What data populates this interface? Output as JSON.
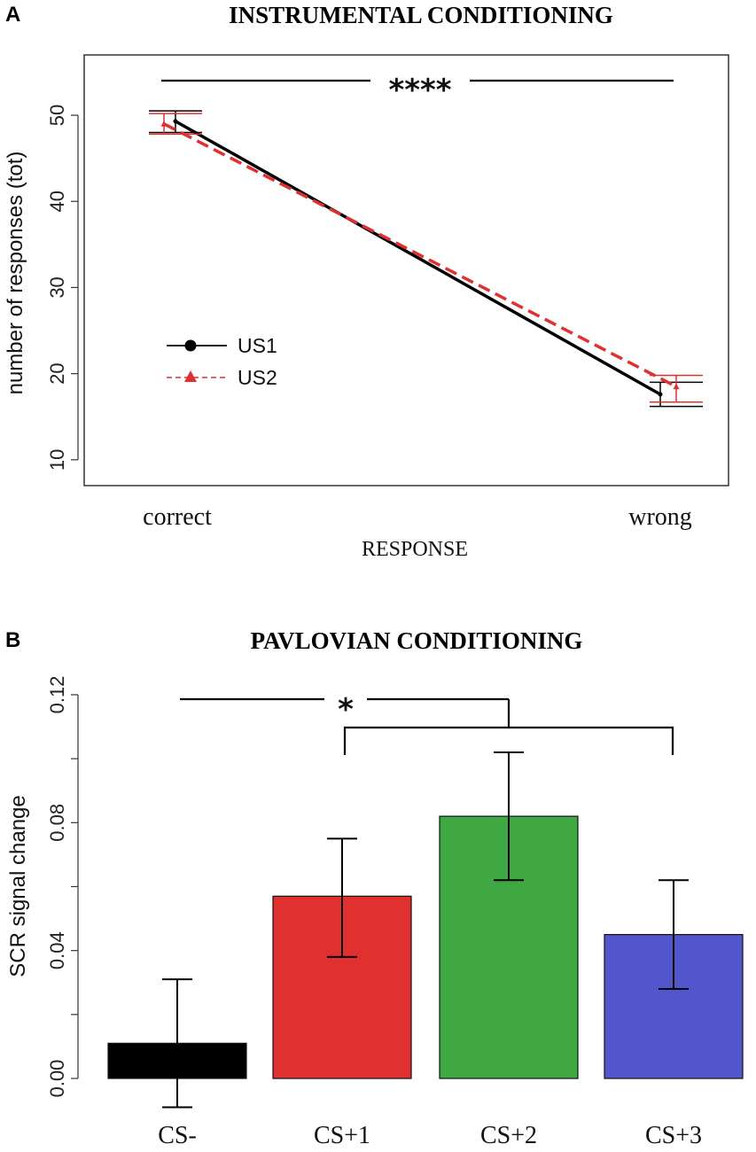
{
  "chart_data": [
    {
      "panel_label": "A",
      "type": "line",
      "title": "INSTRUMENTAL CONDITIONING",
      "xlabel": "RESPONSE",
      "ylabel": "number of responses (tot)",
      "categories": [
        "correct",
        "wrong"
      ],
      "ylim": [
        7,
        57
      ],
      "yticks": [
        10,
        20,
        30,
        40,
        50
      ],
      "series": [
        {
          "name": "US1",
          "color": "#000000",
          "marker": "circle",
          "line": "solid",
          "values": [
            49.3,
            17.6
          ],
          "err_low": [
            48.0,
            16.2
          ],
          "err_high": [
            50.5,
            19.0
          ]
        },
        {
          "name": "US2",
          "color": "#e03030",
          "marker": "triangle",
          "line": "dashed",
          "values": [
            49.0,
            18.5
          ],
          "err_low": [
            47.8,
            16.7
          ],
          "err_high": [
            50.2,
            19.8
          ]
        }
      ],
      "legend_position": "center-left",
      "significance": {
        "label": "****",
        "between": [
          "correct",
          "wrong"
        ]
      }
    },
    {
      "panel_label": "B",
      "type": "bar",
      "title": "PAVLOVIAN CONDITIONING",
      "xlabel": "",
      "ylabel": "SCR signal change",
      "categories": [
        "CS-",
        "CS+1",
        "CS+2",
        "CS+3"
      ],
      "values": [
        0.011,
        0.057,
        0.082,
        0.045
      ],
      "err_low": [
        -0.009,
        0.038,
        0.062,
        0.028
      ],
      "err_high": [
        0.031,
        0.075,
        0.102,
        0.062
      ],
      "colors": [
        "#000000",
        "#e03030",
        "#3fa843",
        "#5256cc"
      ],
      "ylim": [
        0,
        0.12
      ],
      "yticks": [
        "0.00",
        "0.04",
        "0.08",
        "0.12"
      ],
      "ytick_values": [
        0,
        0.04,
        0.08,
        0.12
      ],
      "significance": {
        "label": "*",
        "between": [
          "CS-",
          "CS+1, CS+2, CS+3"
        ]
      }
    }
  ]
}
